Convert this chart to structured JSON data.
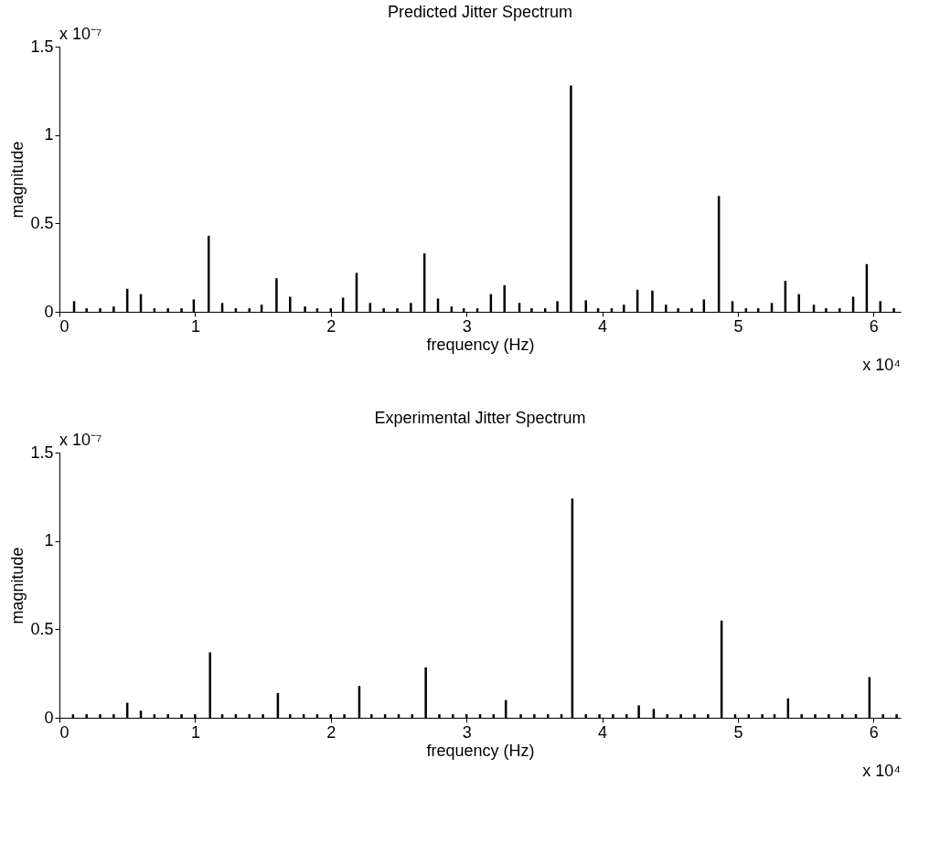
{
  "chart_data": [
    {
      "type": "bar",
      "title": "Predicted Jitter Spectrum",
      "xlabel": "frequency (Hz)",
      "ylabel": "magnitude",
      "color": "#000000",
      "x": [
        0.108,
        0.2,
        0.3,
        0.4,
        0.5,
        0.6,
        0.7,
        0.8,
        0.9,
        0.99,
        1.1,
        1.2,
        1.3,
        1.4,
        1.49,
        1.6,
        1.7,
        1.81,
        1.9,
        2.0,
        2.09,
        2.19,
        2.29,
        2.39,
        2.49,
        2.59,
        2.69,
        2.79,
        2.89,
        2.98,
        3.08,
        3.18,
        3.28,
        3.39,
        3.48,
        3.58,
        3.67,
        3.77,
        3.88,
        3.97,
        4.07,
        4.16,
        4.26,
        4.37,
        4.47,
        4.56,
        4.66,
        4.75,
        4.86,
        4.96,
        5.06,
        5.15,
        5.25,
        5.35,
        5.45,
        5.56,
        5.65,
        5.75,
        5.85,
        5.95,
        6.05,
        6.15
      ],
      "values": [
        0.06,
        0.02,
        0.02,
        0.03,
        0.13,
        0.1,
        0.02,
        0.02,
        0.02,
        0.07,
        0.43,
        0.05,
        0.02,
        0.02,
        0.04,
        0.19,
        0.085,
        0.03,
        0.02,
        0.02,
        0.08,
        0.22,
        0.05,
        0.02,
        0.02,
        0.05,
        0.33,
        0.075,
        0.03,
        0.02,
        0.02,
        0.1,
        0.15,
        0.05,
        0.02,
        0.02,
        0.06,
        1.28,
        0.065,
        0.02,
        0.02,
        0.04,
        0.125,
        0.12,
        0.04,
        0.02,
        0.02,
        0.07,
        0.655,
        0.06,
        0.02,
        0.02,
        0.05,
        0.175,
        0.1,
        0.04,
        0.02,
        0.02,
        0.085,
        0.27,
        0.06,
        0.02
      ],
      "xlim": [
        0,
        6.2
      ],
      "xticks": [
        0,
        1,
        2,
        3,
        4,
        5,
        6
      ],
      "ylim": [
        0,
        1.5
      ],
      "yticks": [
        0,
        0.5,
        1,
        1.5
      ],
      "grid": false,
      "annotations": [
        "x 10⁻⁷",
        "x 10⁴"
      ]
    },
    {
      "type": "bar",
      "title": "Experimental Jitter Spectrum",
      "xlabel": "frequency (Hz)",
      "ylabel": "magnitude",
      "color": "#000000",
      "x": [
        0.1,
        0.2,
        0.3,
        0.4,
        0.5,
        0.6,
        0.7,
        0.8,
        0.9,
        1.0,
        1.11,
        1.2,
        1.3,
        1.4,
        1.5,
        1.61,
        1.7,
        1.8,
        1.9,
        2.0,
        2.1,
        2.21,
        2.3,
        2.4,
        2.5,
        2.6,
        2.7,
        2.8,
        2.9,
        3.0,
        3.1,
        3.2,
        3.29,
        3.4,
        3.5,
        3.6,
        3.7,
        3.78,
        3.88,
        3.98,
        4.08,
        4.18,
        4.27,
        4.38,
        4.48,
        4.58,
        4.68,
        4.78,
        4.88,
        4.98,
        5.08,
        5.18,
        5.27,
        5.37,
        5.47,
        5.57,
        5.67,
        5.77,
        5.87,
        5.97,
        6.07,
        6.17
      ],
      "values": [
        0.02,
        0.02,
        0.02,
        0.02,
        0.085,
        0.04,
        0.02,
        0.02,
        0.02,
        0.02,
        0.37,
        0.02,
        0.02,
        0.02,
        0.02,
        0.14,
        0.02,
        0.02,
        0.02,
        0.02,
        0.02,
        0.18,
        0.02,
        0.02,
        0.02,
        0.02,
        0.285,
        0.02,
        0.02,
        0.02,
        0.02,
        0.02,
        0.1,
        0.02,
        0.02,
        0.02,
        0.02,
        1.24,
        0.02,
        0.02,
        0.02,
        0.02,
        0.07,
        0.05,
        0.02,
        0.02,
        0.02,
        0.02,
        0.55,
        0.02,
        0.02,
        0.02,
        0.02,
        0.11,
        0.02,
        0.02,
        0.02,
        0.02,
        0.02,
        0.23,
        0.02,
        0.02
      ],
      "xlim": [
        0,
        6.2
      ],
      "xticks": [
        0,
        1,
        2,
        3,
        4,
        5,
        6
      ],
      "ylim": [
        0,
        1.5
      ],
      "yticks": [
        0,
        0.5,
        1,
        1.5
      ],
      "grid": false,
      "annotations": [
        "x 10⁻⁷",
        "x 10⁴"
      ]
    }
  ]
}
